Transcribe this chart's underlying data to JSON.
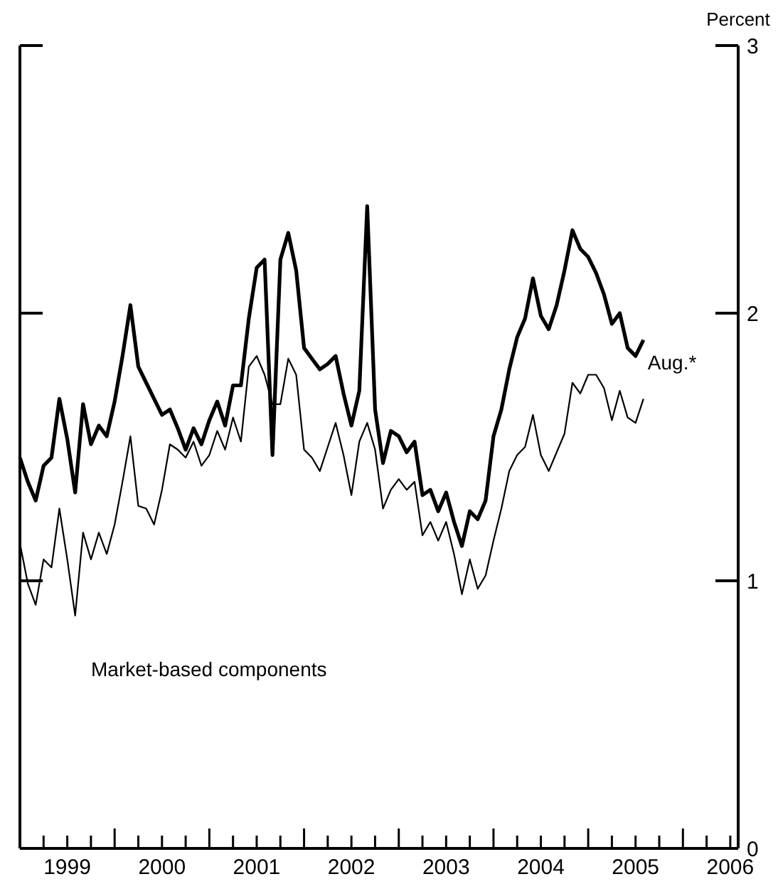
{
  "chart_data": {
    "type": "line",
    "ylabel": "Percent",
    "xlim": [
      "1999-01",
      "2006-08"
    ],
    "xticks": [
      {
        "value": "1999-04",
        "label": null
      },
      {
        "value": "1999-07",
        "label": "1999"
      },
      {
        "value": "1999-10",
        "label": null
      },
      {
        "value": "2000-01",
        "label": null
      },
      {
        "value": "2000-04",
        "label": null
      },
      {
        "value": "2000-07",
        "label": "2000"
      },
      {
        "value": "2000-10",
        "label": null
      },
      {
        "value": "2001-01",
        "label": null
      },
      {
        "value": "2001-04",
        "label": null
      },
      {
        "value": "2001-07",
        "label": "2001"
      },
      {
        "value": "2001-10",
        "label": null
      },
      {
        "value": "2002-01",
        "label": null
      },
      {
        "value": "2002-04",
        "label": null
      },
      {
        "value": "2002-07",
        "label": "2002"
      },
      {
        "value": "2002-10",
        "label": null
      },
      {
        "value": "2003-01",
        "label": null
      },
      {
        "value": "2003-04",
        "label": null
      },
      {
        "value": "2003-07",
        "label": "2003"
      },
      {
        "value": "2003-10",
        "label": null
      },
      {
        "value": "2004-01",
        "label": null
      },
      {
        "value": "2004-04",
        "label": null
      },
      {
        "value": "2004-07",
        "label": "2004"
      },
      {
        "value": "2004-10",
        "label": null
      },
      {
        "value": "2005-01",
        "label": null
      },
      {
        "value": "2005-04",
        "label": null
      },
      {
        "value": "2005-07",
        "label": "2005"
      },
      {
        "value": "2005-10",
        "label": null
      },
      {
        "value": "2006-01",
        "label": null
      },
      {
        "value": "2006-04",
        "label": null
      },
      {
        "value": "2006-07",
        "label": "2006"
      }
    ],
    "ylim": [
      0,
      3
    ],
    "yticks": [
      0,
      1,
      2,
      3
    ],
    "grid": false,
    "marker": "none",
    "line_style": "solid",
    "x": [
      "1999-01",
      "1999-02",
      "1999-03",
      "1999-04",
      "1999-05",
      "1999-06",
      "1999-07",
      "1999-08",
      "1999-09",
      "1999-10",
      "1999-11",
      "1999-12",
      "2000-01",
      "2000-02",
      "2000-03",
      "2000-04",
      "2000-05",
      "2000-06",
      "2000-07",
      "2000-08",
      "2000-09",
      "2000-10",
      "2000-11",
      "2000-12",
      "2001-01",
      "2001-02",
      "2001-03",
      "2001-04",
      "2001-05",
      "2001-06",
      "2001-07",
      "2001-08",
      "2001-09",
      "2001-10",
      "2001-11",
      "2001-12",
      "2002-01",
      "2002-02",
      "2002-03",
      "2002-04",
      "2002-05",
      "2002-06",
      "2002-07",
      "2002-08",
      "2002-09",
      "2002-10",
      "2002-11",
      "2002-12",
      "2003-01",
      "2003-02",
      "2003-03",
      "2003-04",
      "2003-05",
      "2003-06",
      "2003-07",
      "2003-08",
      "2003-09",
      "2003-10",
      "2003-11",
      "2003-12",
      "2004-01",
      "2004-02",
      "2004-03",
      "2004-04",
      "2004-05",
      "2004-06",
      "2004-07",
      "2004-08",
      "2004-09",
      "2004-10",
      "2004-11",
      "2004-12",
      "2005-01",
      "2005-02",
      "2005-03",
      "2005-04",
      "2005-05",
      "2005-06",
      "2005-07",
      "2005-08"
    ],
    "series": [
      {
        "color": "#000000",
        "values": [
          1.46,
          1.37,
          1.3,
          1.43,
          1.46,
          1.68,
          1.53,
          1.33,
          1.66,
          1.51,
          1.58,
          1.54,
          1.67,
          1.84,
          2.03,
          1.8,
          1.74,
          1.68,
          1.62,
          1.64,
          1.57,
          1.49,
          1.57,
          1.51,
          1.6,
          1.67,
          1.58,
          1.73,
          1.73,
          1.98,
          2.17,
          2.2,
          1.47,
          2.2,
          2.3,
          2.16,
          1.87,
          1.83,
          1.79,
          1.81,
          1.84,
          1.7,
          1.58,
          1.71,
          2.4,
          1.64,
          1.44,
          1.56,
          1.54,
          1.48,
          1.52,
          1.32,
          1.34,
          1.26,
          1.33,
          1.22,
          1.13,
          1.26,
          1.23,
          1.3,
          1.54,
          1.64,
          1.79,
          1.91,
          1.98,
          2.13,
          1.99,
          1.94,
          2.03,
          2.16,
          2.31,
          2.24,
          2.21,
          2.15,
          2.07,
          1.96,
          2.0,
          1.87,
          1.84,
          1.9
        ]
      },
      {
        "color": "#000000",
        "values": [
          1.14,
          0.99,
          0.91,
          1.08,
          1.05,
          1.27,
          1.08,
          0.87,
          1.18,
          1.08,
          1.18,
          1.1,
          1.21,
          1.37,
          1.54,
          1.28,
          1.27,
          1.21,
          1.34,
          1.51,
          1.49,
          1.46,
          1.52,
          1.43,
          1.47,
          1.56,
          1.49,
          1.61,
          1.52,
          1.8,
          1.84,
          1.77,
          1.66,
          1.66,
          1.83,
          1.77,
          1.49,
          1.46,
          1.41,
          1.5,
          1.59,
          1.47,
          1.32,
          1.52,
          1.59,
          1.49,
          1.27,
          1.34,
          1.38,
          1.34,
          1.37,
          1.17,
          1.22,
          1.15,
          1.22,
          1.1,
          0.95,
          1.08,
          0.97,
          1.02,
          1.15,
          1.27,
          1.41,
          1.47,
          1.5,
          1.62,
          1.47,
          1.41,
          1.48,
          1.55,
          1.74,
          1.7,
          1.77,
          1.77,
          1.72,
          1.6,
          1.71,
          1.61,
          1.59,
          1.68
        ]
      }
    ],
    "annotations": [
      "Aug.*",
      "Market-based components"
    ]
  }
}
